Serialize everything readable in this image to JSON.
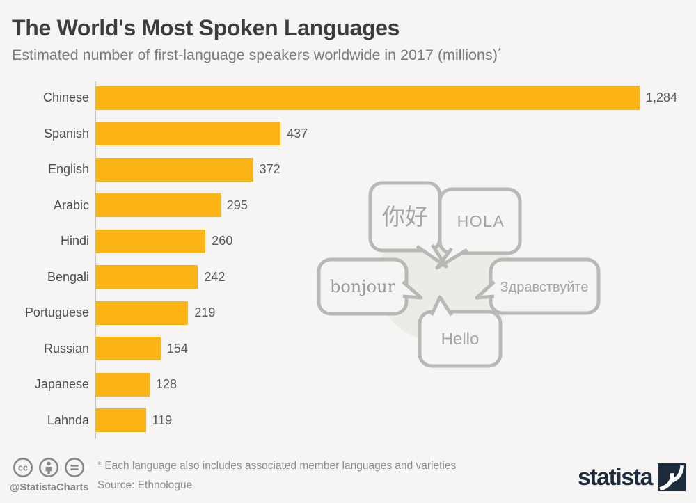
{
  "header": {
    "title": "The World's Most Spoken Languages",
    "subtitle": "Estimated number of first-language speakers worldwide in 2017 (millions)",
    "footnote_marker": "*"
  },
  "chart_data": {
    "type": "bar",
    "orientation": "horizontal",
    "title": "The World's Most Spoken Languages",
    "subtitle": "Estimated number of first-language speakers worldwide in 2017 (millions)*",
    "categories": [
      "Chinese",
      "Spanish",
      "English",
      "Arabic",
      "Hindi",
      "Bengali",
      "Portuguese",
      "Russian",
      "Japanese",
      "Lahnda"
    ],
    "values": [
      1284,
      437,
      372,
      295,
      260,
      242,
      219,
      154,
      128,
      119
    ],
    "value_labels": [
      "1,284",
      "437",
      "372",
      "295",
      "260",
      "242",
      "219",
      "154",
      "128",
      "119"
    ],
    "xlim": [
      0,
      1284
    ],
    "grid": false,
    "legend": false,
    "bar_color": "#fcb316",
    "unit": "millions"
  },
  "decorative": {
    "bubbles": [
      {
        "name": "chinese",
        "text": "你好"
      },
      {
        "name": "spanish",
        "text": "HOLA"
      },
      {
        "name": "french",
        "text": "bonjour"
      },
      {
        "name": "russian",
        "text": "Здравствуйте"
      },
      {
        "name": "english",
        "text": "Hello"
      }
    ]
  },
  "footer": {
    "license_icons": [
      "cc-icon",
      "attribution-person-icon",
      "equals-icon"
    ],
    "handle": "@StatistaCharts",
    "footnote": "* Each language also includes associated member languages and varieties",
    "source": "Source: Ethnologue",
    "brand": "statista"
  },
  "colors": {
    "background": "#f6f5f3",
    "bar": "#fcb316",
    "title_text": "#3d3d3d",
    "subtitle_text": "#7a7a7a",
    "label_text": "#4d4d4d",
    "axis_line": "#c8c6c4",
    "bubble_stroke": "#b9b8b6",
    "bubble_text": "#a6a5a3",
    "blob_fill": "#edebe8",
    "footer_text": "#8d8c8a",
    "brand_navy": "#1d2c3d"
  }
}
